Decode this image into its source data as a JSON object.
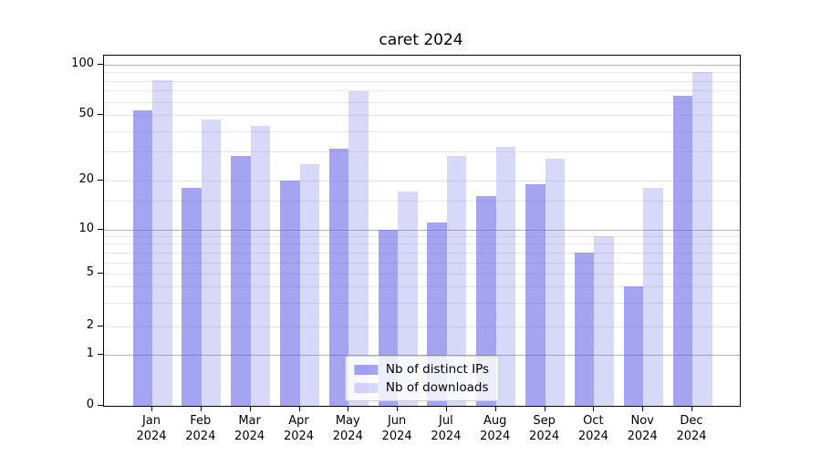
{
  "chart_data": {
    "type": "bar",
    "title": "caret 2024",
    "categories": [
      "Jan 2024",
      "Feb 2024",
      "Mar 2024",
      "Apr 2024",
      "May 2024",
      "Jun 2024",
      "Jul 2024",
      "Aug 2024",
      "Sep 2024",
      "Oct 2024",
      "Nov 2024",
      "Dec 2024"
    ],
    "x_ticklabels": [
      [
        "Jan",
        "2024"
      ],
      [
        "Feb",
        "2024"
      ],
      [
        "Mar",
        "2024"
      ],
      [
        "Apr",
        "2024"
      ],
      [
        "May",
        "2024"
      ],
      [
        "Jun",
        "2024"
      ],
      [
        "Jul",
        "2024"
      ],
      [
        "Aug",
        "2024"
      ],
      [
        "Sep",
        "2024"
      ],
      [
        "Oct",
        "2024"
      ],
      [
        "Nov",
        "2024"
      ],
      [
        "Dec",
        "2024"
      ]
    ],
    "series": [
      {
        "name": "Nb of distinct IPs",
        "values": [
          53,
          18,
          28,
          20,
          31,
          10,
          11,
          16,
          19,
          7,
          4,
          65
        ],
        "apparent_color": "#a4a4ee",
        "fill": "rgba(90,90,230,0.55)"
      },
      {
        "name": "Nb of downloads",
        "values": [
          81,
          47,
          43,
          25,
          69,
          17,
          28,
          32,
          27,
          9,
          18,
          91
        ],
        "apparent_color": "#d9d9f8",
        "fill": "rgba(90,90,230,0.24)"
      }
    ],
    "yscale": "log-like (symlog: linear below 1, compressed log below 10)",
    "yticks_labeled": [
      0,
      1,
      2,
      5,
      10,
      20,
      50,
      100
    ],
    "yticks_minor": [
      3,
      4,
      6,
      7,
      8,
      9,
      15,
      30,
      40,
      60,
      70,
      80,
      90
    ],
    "ylim": [
      0,
      114
    ],
    "grid": "horizontal",
    "legend_position": "lower center",
    "xlabel": "",
    "ylabel": ""
  },
  "colors": {
    "background": "#ffffff",
    "axis_and_text": "#000000",
    "grid_major": "#b3b3b3",
    "grid_minor": "#e7e7e7",
    "legend_border": "#cccccc",
    "legend_background": "rgba(255,255,255,0.8)"
  }
}
